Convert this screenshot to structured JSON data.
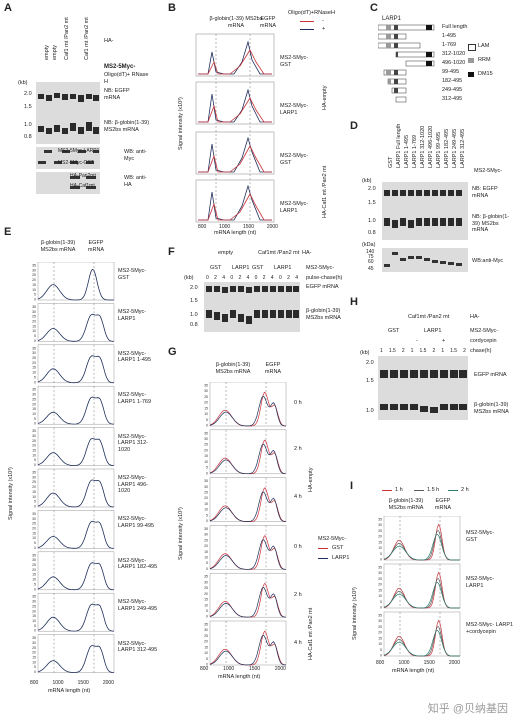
{
  "panels": {
    "A": {
      "label": "A",
      "ha_label": "HA-",
      "lanes": [
        "empty",
        "empty",
        "Caf1 mt /Pan2 mt",
        "Caf1 mt /Pan2 mt"
      ],
      "lane_sub": [
        "GST",
        "LARP1",
        "GST",
        "LARP1"
      ],
      "ms2_title": "MS2-5Myc-",
      "oligo": "Oligo(dT)+ RNase H",
      "marks": [
        "-",
        "+",
        "-",
        "+",
        "-",
        "+",
        "-",
        "+"
      ],
      "kb": "(kb)",
      "ladder": [
        "2.0",
        "1.5",
        "1.0",
        "0.8"
      ],
      "nb_egfp": "NB: EGFP mRNA",
      "nb_bglobin": "NB: β-globin(1-39) MS2bs mRNA",
      "wb1_rows": [
        "MS2-5Myc-LARP1",
        "MS2-5Myc-GST"
      ],
      "wb1": "WB: anti-Myc",
      "wb2_rows": [
        "HA-Pan2mt",
        "HA-Caf1mt"
      ],
      "wb2": "WB: anti-HA"
    },
    "B": {
      "label": "B",
      "bracket1": "β-globin(1-39) MS2bs mRNA",
      "bracket2": "EGFP mRNA",
      "legend_title": "Oligo(dT)+RNaseH",
      "legend_minus": "-",
      "legend_plus": "+",
      "ylabel": "Signal intensity (x10³)",
      "xlabel": "mRNA length (nt)",
      "xticks": [
        "800",
        "1000",
        "1500",
        "2000"
      ],
      "rows": [
        "MS2-5Myc-GST",
        "MS2-5Myc-LARP1",
        "MS2-5Myc-GST",
        "MS2-5Myc-LARP1"
      ],
      "group1": "HA-empty",
      "group2": "HA-Caf1 mt /Pan2 mt"
    },
    "C": {
      "label": "C",
      "title": "LARP1",
      "constructs": [
        "Full length",
        "1-495",
        "1-769",
        "312-1020",
        "496-1020",
        "99-495",
        "182-495",
        "249-495",
        "312-495"
      ],
      "legend": [
        "LAM",
        "RRM",
        "DM15"
      ]
    },
    "D": {
      "label": "D",
      "lanes": [
        "GST",
        "LARP1 Full length",
        "LARP1 1-495",
        "LARP1 1-769",
        "LARP1 312-1020",
        "LARP1 496-1020",
        "LARP1 99-495",
        "LARP1 182-495",
        "LARP1 249-495",
        "LARP1 312-495"
      ],
      "ms2": "MS2-5Myc-",
      "kb": "(kb)",
      "ladder": [
        "2.0",
        "1.5",
        "1.0",
        "0.8"
      ],
      "nb_egfp": "NB: EGFP mRNA",
      "nb_bglobin": "NB: β-globin(1-39) MS2bs mRNA",
      "kda": "(kDa)",
      "kda_ladder": [
        "140",
        "75",
        "60",
        "45"
      ],
      "wb": "WB:anti-Myc"
    },
    "E": {
      "label": "E",
      "bracket1": "β-globin(1-39) MS2bs mRNA",
      "bracket2": "EGFP mRNA",
      "ylabel": "Signal intensity (x10³)",
      "xlabel": "mRNA length (nt)",
      "xticks": [
        "800",
        "1000",
        "1500",
        "2000"
      ],
      "yticks": [
        "35",
        "30",
        "25",
        "20",
        "15",
        "10",
        "5",
        "0"
      ],
      "rows": [
        "MS2-5Myc- GST",
        "MS2-5Myc- LARP1",
        "MS2-5Myc- LARP1 1-495",
        "MS2-5Myc- LARP1 1-769",
        "MS2-5Myc- LARP1 312-1020",
        "MS2-5Myc- LARP1 496-1020",
        "MS2-5Myc- LARP1 99-495",
        "MS2-5Myc- LARP1 182-495",
        "MS2-5Myc- LARP1 249-495",
        "MS2-5Myc- LARP1 312-495"
      ]
    },
    "F": {
      "label": "F",
      "group1": "empty",
      "group2": "Caf1mt /Pan2 mt",
      "ha": "HA-",
      "sub": [
        "GST",
        "LARP1",
        "GST",
        "LARP1"
      ],
      "ms2": "MS2-5Myc-",
      "chase": "pulse-chase(h)",
      "times": [
        "0",
        "2",
        "4",
        "0",
        "2",
        "4",
        "0",
        "2",
        "4",
        "0",
        "2",
        "4"
      ],
      "kb": "(kb)",
      "ladder": [
        "2.0",
        "1.5",
        "1.0",
        "0.8"
      ],
      "egfp": "EGFP mRNA",
      "bglobin": "β-globin(1-39) MS2bs mRNA"
    },
    "G": {
      "label": "G",
      "bracket1": "β-globin(1-39) MS2bs mRNA",
      "bracket2": "EGFP mRNA",
      "ylabel": "Signal intensity (x10³)",
      "xlabel": "mRNA length (nt)",
      "xticks": [
        "800",
        "1000",
        "1500",
        "2000"
      ],
      "yticks": [
        "35",
        "30",
        "25",
        "20",
        "15",
        "10",
        "5",
        "0"
      ],
      "times": [
        "0 h",
        "2 h",
        "4 h",
        "0 h",
        "2 h",
        "4 h"
      ],
      "group1": "HA-empty",
      "group2": "HA-Caf1 mt /Pan2 mt",
      "legend_title": "MS2-5Myc-",
      "legend": [
        "GST",
        "LARP1"
      ]
    },
    "H": {
      "label": "H",
      "top": "Caf1mt /Pan2 mt",
      "ha": "HA-",
      "sub": [
        "GST",
        "LARP1"
      ],
      "ms2": "MS2-5Myc-",
      "cordycepin": "cordycepin",
      "cordy_marks": [
        "-",
        "+"
      ],
      "chase": "chase(h)",
      "times": [
        "1",
        "1.5",
        "2",
        "1",
        "1.5",
        "2",
        "1",
        "1.5",
        "2"
      ],
      "kb": "(kb)",
      "ladder": [
        "2.0",
        "1.5",
        "1.0"
      ],
      "egfp": "EGFP mRNA",
      "bglobin": "β-globin(1-39) MS2bs mRNA"
    },
    "I": {
      "label": "I",
      "legend": [
        "1 h",
        "1.5 h",
        "2 h"
      ],
      "bracket1": "β-globin(1-39) MS2bs mRNA",
      "bracket2": "EGFP mRNA",
      "ylabel": "Signal intensity (x10³)",
      "xlabel": "mRNA length (nt)",
      "xticks": [
        "800",
        "1000",
        "1500",
        "2000"
      ],
      "yticks": [
        "35",
        "30",
        "25",
        "20",
        "15",
        "10",
        "5",
        "0"
      ],
      "rows": [
        "MS2-5Myc- GST",
        "MS2-5Myc- LARP1",
        "MS2-5Myc- LARP1 +cordycepin"
      ]
    }
  },
  "watermark": "知乎 @贝纳基因",
  "colors": {
    "dark": "#1f2f5c",
    "red": "#c8333a",
    "pink": "#e06c76",
    "gray": "#5a5a5a",
    "green": "#2e7d6e"
  }
}
